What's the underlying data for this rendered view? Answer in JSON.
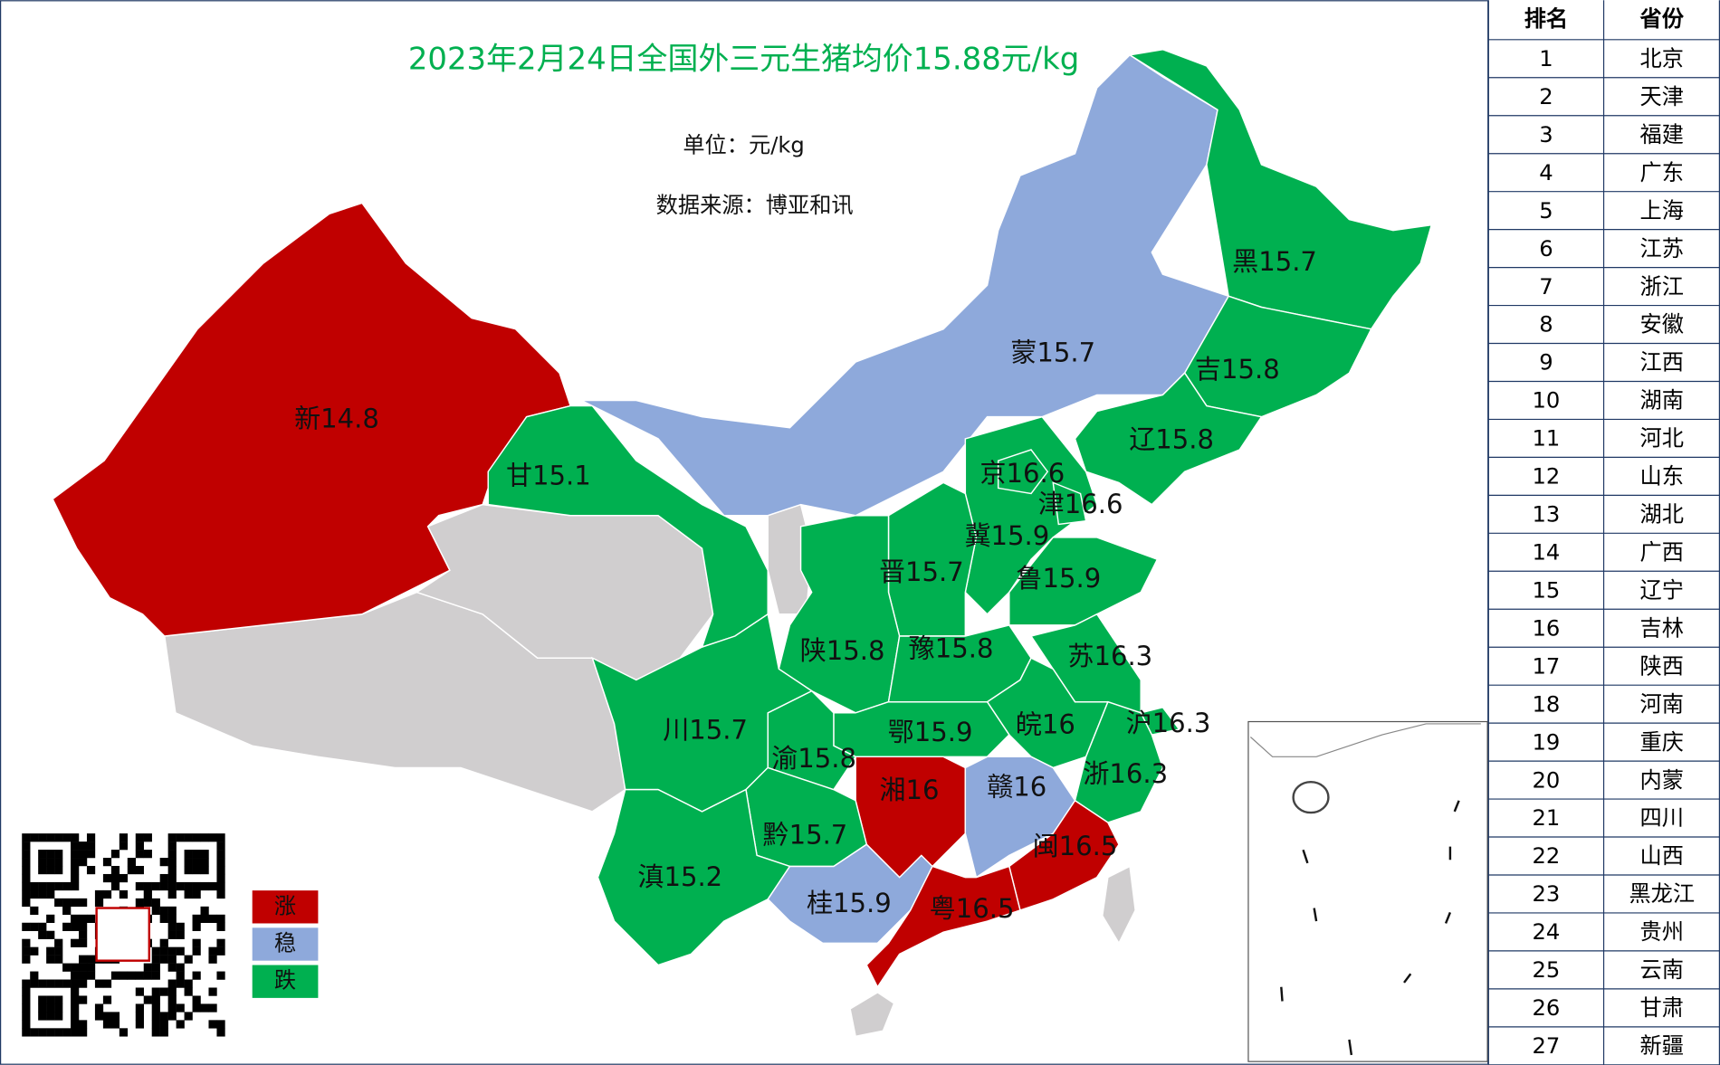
{
  "title": "2023年2月24日全国外三元生猪均价15.88元/kg",
  "unit": "单位：元/kg",
  "source": "数据来源：博亚和讯",
  "legend": [
    {
      "label": "涨",
      "color": "#c00000"
    },
    {
      "label": "稳",
      "color": "#8ea9db"
    },
    {
      "label": "跌",
      "color": "#00b050"
    }
  ],
  "provinces": [
    {
      "name": "新",
      "value": 14.8,
      "color": "#c00000"
    },
    {
      "name": "甘",
      "value": 15.1,
      "color": "#00b050"
    },
    {
      "name": "蒙",
      "value": 15.7,
      "color": "#8ea9db"
    },
    {
      "name": "黑",
      "value": 15.7,
      "color": "#00b050"
    },
    {
      "name": "吉",
      "value": 15.8,
      "color": "#00b050"
    },
    {
      "name": "辽",
      "value": 15.8,
      "color": "#00b050"
    },
    {
      "name": "冀",
      "value": 15.9,
      "color": "#00b050"
    },
    {
      "name": "京",
      "value": 16.6,
      "color": "#00b050"
    },
    {
      "name": "津",
      "value": 16.6,
      "color": "#00b050"
    },
    {
      "name": "晋",
      "value": 15.7,
      "color": "#00b050"
    },
    {
      "name": "鲁",
      "value": 15.9,
      "color": "#00b050"
    },
    {
      "name": "陕",
      "value": 15.8,
      "color": "#00b050"
    },
    {
      "name": "豫",
      "value": 15.8,
      "color": "#00b050"
    },
    {
      "name": "苏",
      "value": 16.3,
      "color": "#00b050"
    },
    {
      "name": "沪",
      "value": 16.3,
      "color": "#00b050"
    },
    {
      "name": "皖",
      "value": 16,
      "color": "#00b050"
    },
    {
      "name": "鄂",
      "value": 15.9,
      "color": "#00b050"
    },
    {
      "name": "渝",
      "value": 15.8,
      "color": "#00b050"
    },
    {
      "name": "川",
      "value": 15.7,
      "color": "#00b050"
    },
    {
      "name": "浙",
      "value": 16.3,
      "color": "#00b050"
    },
    {
      "name": "湘",
      "value": 16,
      "color": "#c00000"
    },
    {
      "name": "赣",
      "value": 16,
      "color": "#8ea9db"
    },
    {
      "name": "黔",
      "value": 15.7,
      "color": "#00b050"
    },
    {
      "name": "闽",
      "value": 16.5,
      "color": "#c00000"
    },
    {
      "name": "滇",
      "value": 15.2,
      "color": "#00b050"
    },
    {
      "name": "桂",
      "value": 15.9,
      "color": "#8ea9db"
    },
    {
      "name": "粤",
      "value": 16.5,
      "color": "#c00000"
    }
  ],
  "ranking": {
    "header": [
      "排名",
      "省份"
    ],
    "rows": [
      [
        1,
        "北京"
      ],
      [
        2,
        "天津"
      ],
      [
        3,
        "福建"
      ],
      [
        4,
        "广东"
      ],
      [
        5,
        "上海"
      ],
      [
        6,
        "江苏"
      ],
      [
        7,
        "浙江"
      ],
      [
        8,
        "安徽"
      ],
      [
        9,
        "江西"
      ],
      [
        10,
        "湖南"
      ],
      [
        11,
        "河北"
      ],
      [
        12,
        "山东"
      ],
      [
        13,
        "湖北"
      ],
      [
        14,
        "广西"
      ],
      [
        15,
        "辽宁"
      ],
      [
        16,
        "吉林"
      ],
      [
        17,
        "陕西"
      ],
      [
        18,
        "河南"
      ],
      [
        19,
        "重庆"
      ],
      [
        20,
        "内蒙"
      ],
      [
        21,
        "四川"
      ],
      [
        22,
        "山西"
      ],
      [
        23,
        "黑龙江"
      ],
      [
        24,
        "贵州"
      ],
      [
        25,
        "云南"
      ],
      [
        26,
        "甘肃"
      ],
      [
        27,
        "新疆"
      ]
    ]
  }
}
